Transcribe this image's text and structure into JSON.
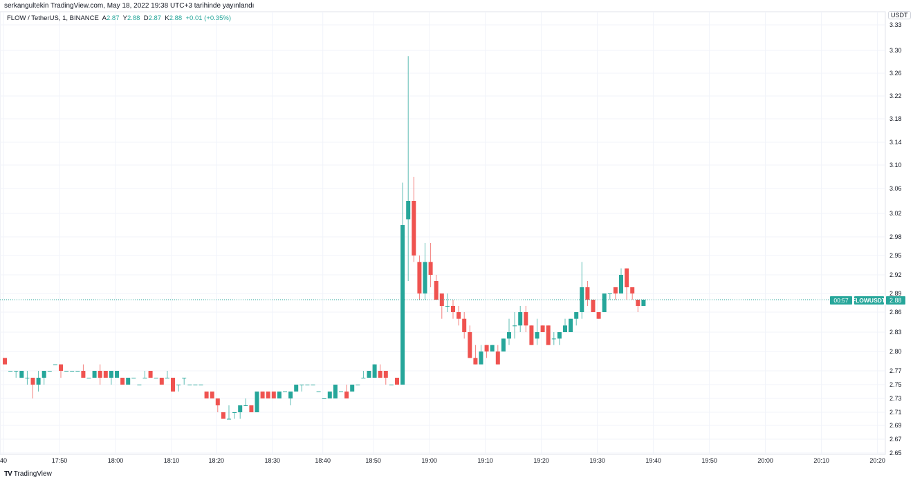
{
  "published": "serkangultekin TradingView.com, May 18, 2022 19:38 UTC+3 tarihinde yayınlandı",
  "legend": {
    "symbol": "FLOW / TetherUS, 1, BINANCE",
    "open_label": "A",
    "open": "2.87",
    "high_label": "Y",
    "high": "2.88",
    "low_label": "D",
    "low": "2.87",
    "close_label": "K",
    "close": "2.88",
    "change": "+0.01 (+0.35%)"
  },
  "currency": "USDT",
  "price_tag": {
    "symbol": "FLOWUSDT",
    "price": "2.88",
    "countdown": "00:57"
  },
  "footer": {
    "logo": "TV",
    "brand": "TradingView"
  },
  "colors": {
    "up": "#26a69a",
    "down": "#ef5350",
    "grid": "#f0f3fa",
    "text": "#131722"
  },
  "chart_data": {
    "type": "candlestick",
    "title": "FLOW / TetherUS, 1, BINANCE",
    "ylabel": "USDT",
    "ylim": [
      2.65,
      3.33
    ],
    "grid": true,
    "last_price": 2.88,
    "y_ticks": [
      "3.33",
      "3.30",
      "3.26",
      "3.22",
      "3.18",
      "3.14",
      "3.10",
      "3.06",
      "3.02",
      "2.98",
      "2.95",
      "2.92",
      "2.89",
      "2.86",
      "2.83",
      "2.80",
      "2.77",
      "2.75",
      "2.73",
      "2.71",
      "2.69",
      "2.67",
      "2.65"
    ],
    "x_ticks": [
      {
        "bar": 0,
        "label": "40"
      },
      {
        "bar": 10,
        "label": "17:50"
      },
      {
        "bar": 20,
        "label": "18:00"
      },
      {
        "bar": 30,
        "label": "18:10"
      },
      {
        "bar": 38,
        "label": "18:20"
      },
      {
        "bar": 48,
        "label": "18:30"
      },
      {
        "bar": 57,
        "label": "18:40"
      },
      {
        "bar": 66,
        "label": "18:50"
      },
      {
        "bar": 76,
        "label": "19:00"
      },
      {
        "bar": 86,
        "label": "19:10"
      },
      {
        "bar": 96,
        "label": "19:20"
      },
      {
        "bar": 106,
        "label": "19:30"
      },
      {
        "bar": 116,
        "label": "19:40"
      },
      {
        "bar": 126,
        "label": "19:50"
      },
      {
        "bar": 136,
        "label": "20:00"
      },
      {
        "bar": 146,
        "label": "20:10"
      },
      {
        "bar": 156,
        "label": "20:20"
      }
    ],
    "ohlc_fields": [
      "open",
      "high",
      "low",
      "close"
    ],
    "candles": [
      [
        2.79,
        2.79,
        2.78,
        2.78
      ],
      [
        2.77,
        2.77,
        2.77,
        2.77
      ],
      [
        2.77,
        2.77,
        2.76,
        2.77
      ],
      [
        2.76,
        2.77,
        2.76,
        2.77
      ],
      [
        2.76,
        2.77,
        2.75,
        2.76
      ],
      [
        2.76,
        2.76,
        2.73,
        2.75
      ],
      [
        2.75,
        2.77,
        2.74,
        2.76
      ],
      [
        2.76,
        2.77,
        2.75,
        2.77
      ],
      [
        2.77,
        2.77,
        2.77,
        2.77
      ],
      [
        2.78,
        2.78,
        2.78,
        2.78
      ],
      [
        2.78,
        2.78,
        2.76,
        2.77
      ],
      [
        2.77,
        2.77,
        2.77,
        2.77
      ],
      [
        2.77,
        2.77,
        2.77,
        2.77
      ],
      [
        2.77,
        2.77,
        2.77,
        2.77
      ],
      [
        2.77,
        2.78,
        2.76,
        2.76
      ],
      [
        2.76,
        2.76,
        2.76,
        2.76
      ],
      [
        2.76,
        2.77,
        2.76,
        2.77
      ],
      [
        2.77,
        2.78,
        2.75,
        2.76
      ],
      [
        2.77,
        2.77,
        2.76,
        2.76
      ],
      [
        2.76,
        2.77,
        2.75,
        2.77
      ],
      [
        2.76,
        2.77,
        2.76,
        2.77
      ],
      [
        2.76,
        2.76,
        2.75,
        2.75
      ],
      [
        2.75,
        2.76,
        2.75,
        2.76
      ],
      [
        2.76,
        2.76,
        2.76,
        2.76
      ],
      [
        2.75,
        2.75,
        2.75,
        2.75
      ],
      [
        2.76,
        2.77,
        2.76,
        2.76
      ],
      [
        2.77,
        2.77,
        2.76,
        2.76
      ],
      [
        2.76,
        2.76,
        2.76,
        2.76
      ],
      [
        2.76,
        2.76,
        2.75,
        2.75
      ],
      [
        2.76,
        2.77,
        2.76,
        2.76
      ],
      [
        2.76,
        2.76,
        2.74,
        2.74
      ],
      [
        2.75,
        2.75,
        2.74,
        2.75
      ],
      [
        2.76,
        2.76,
        2.75,
        2.76
      ],
      [
        2.75,
        2.75,
        2.75,
        2.75
      ],
      [
        2.75,
        2.75,
        2.75,
        2.75
      ],
      [
        2.75,
        2.75,
        2.75,
        2.75
      ],
      [
        2.74,
        2.74,
        2.73,
        2.73
      ],
      [
        2.74,
        2.74,
        2.73,
        2.73
      ],
      [
        2.73,
        2.73,
        2.71,
        2.72
      ],
      [
        2.71,
        2.71,
        2.7,
        2.7
      ],
      [
        2.7,
        2.72,
        2.7,
        2.7
      ],
      [
        2.71,
        2.71,
        2.7,
        2.71
      ],
      [
        2.71,
        2.72,
        2.7,
        2.72
      ],
      [
        2.72,
        2.73,
        2.72,
        2.72
      ],
      [
        2.72,
        2.72,
        2.71,
        2.71
      ],
      [
        2.71,
        2.74,
        2.71,
        2.74
      ],
      [
        2.74,
        2.74,
        2.73,
        2.73
      ],
      [
        2.74,
        2.74,
        2.73,
        2.73
      ],
      [
        2.74,
        2.74,
        2.73,
        2.73
      ],
      [
        2.73,
        2.74,
        2.73,
        2.74
      ],
      [
        2.74,
        2.74,
        2.74,
        2.74
      ],
      [
        2.73,
        2.74,
        2.72,
        2.74
      ],
      [
        2.74,
        2.75,
        2.74,
        2.75
      ],
      [
        2.75,
        2.75,
        2.74,
        2.75
      ],
      [
        2.75,
        2.75,
        2.75,
        2.75
      ],
      [
        2.75,
        2.75,
        2.75,
        2.75
      ],
      [
        2.74,
        2.74,
        2.74,
        2.74
      ],
      [
        2.73,
        2.73,
        2.73,
        2.73
      ],
      [
        2.73,
        2.74,
        2.73,
        2.74
      ],
      [
        2.73,
        2.75,
        2.73,
        2.75
      ],
      [
        2.74,
        2.74,
        2.74,
        2.74
      ],
      [
        2.74,
        2.75,
        2.73,
        2.73
      ],
      [
        2.74,
        2.75,
        2.74,
        2.75
      ],
      [
        2.75,
        2.75,
        2.75,
        2.75
      ],
      [
        2.76,
        2.77,
        2.76,
        2.76
      ],
      [
        2.76,
        2.77,
        2.76,
        2.77
      ],
      [
        2.76,
        2.78,
        2.76,
        2.78
      ],
      [
        2.77,
        2.78,
        2.76,
        2.76
      ],
      [
        2.77,
        2.77,
        2.75,
        2.76
      ],
      [
        2.75,
        2.75,
        2.75,
        2.75
      ],
      [
        2.76,
        2.76,
        2.75,
        2.75
      ],
      [
        2.75,
        3.07,
        2.75,
        3.0
      ],
      [
        3.01,
        3.29,
        2.91,
        3.04
      ],
      [
        3.04,
        3.08,
        2.94,
        2.95
      ],
      [
        2.94,
        2.95,
        2.88,
        2.89
      ],
      [
        2.89,
        2.97,
        2.88,
        2.94
      ],
      [
        2.94,
        2.97,
        2.9,
        2.92
      ],
      [
        2.91,
        2.92,
        2.88,
        2.88
      ],
      [
        2.89,
        2.89,
        2.85,
        2.87
      ],
      [
        2.87,
        2.89,
        2.86,
        2.87
      ],
      [
        2.87,
        2.88,
        2.85,
        2.86
      ],
      [
        2.86,
        2.87,
        2.84,
        2.85
      ],
      [
        2.85,
        2.86,
        2.82,
        2.83
      ],
      [
        2.83,
        2.84,
        2.79,
        2.79
      ],
      [
        2.79,
        2.81,
        2.78,
        2.78
      ],
      [
        2.78,
        2.81,
        2.78,
        2.8
      ],
      [
        2.81,
        2.81,
        2.79,
        2.8
      ],
      [
        2.8,
        2.81,
        2.8,
        2.81
      ],
      [
        2.8,
        2.81,
        2.78,
        2.78
      ],
      [
        2.8,
        2.82,
        2.8,
        2.82
      ],
      [
        2.82,
        2.85,
        2.81,
        2.83
      ],
      [
        2.84,
        2.86,
        2.82,
        2.84
      ],
      [
        2.84,
        2.87,
        2.83,
        2.86
      ],
      [
        2.86,
        2.87,
        2.83,
        2.84
      ],
      [
        2.84,
        2.84,
        2.81,
        2.81
      ],
      [
        2.82,
        2.85,
        2.81,
        2.83
      ],
      [
        2.84,
        2.84,
        2.83,
        2.83
      ],
      [
        2.84,
        2.84,
        2.81,
        2.81
      ],
      [
        2.82,
        2.83,
        2.81,
        2.82
      ],
      [
        2.82,
        2.83,
        2.81,
        2.83
      ],
      [
        2.83,
        2.85,
        2.83,
        2.84
      ],
      [
        2.83,
        2.85,
        2.83,
        2.85
      ],
      [
        2.85,
        2.86,
        2.84,
        2.86
      ],
      [
        2.86,
        2.94,
        2.85,
        2.9
      ],
      [
        2.9,
        2.91,
        2.87,
        2.88
      ],
      [
        2.88,
        2.88,
        2.86,
        2.86
      ],
      [
        2.86,
        2.86,
        2.85,
        2.85
      ],
      [
        2.86,
        2.89,
        2.86,
        2.89
      ],
      [
        2.89,
        2.89,
        2.88,
        2.89
      ],
      [
        2.9,
        2.9,
        2.88,
        2.89
      ],
      [
        2.89,
        2.93,
        2.89,
        2.92
      ],
      [
        2.93,
        2.93,
        2.88,
        2.9
      ],
      [
        2.9,
        2.9,
        2.88,
        2.89
      ],
      [
        2.88,
        2.88,
        2.86,
        2.87
      ],
      [
        2.87,
        2.88,
        2.87,
        2.88
      ]
    ]
  }
}
